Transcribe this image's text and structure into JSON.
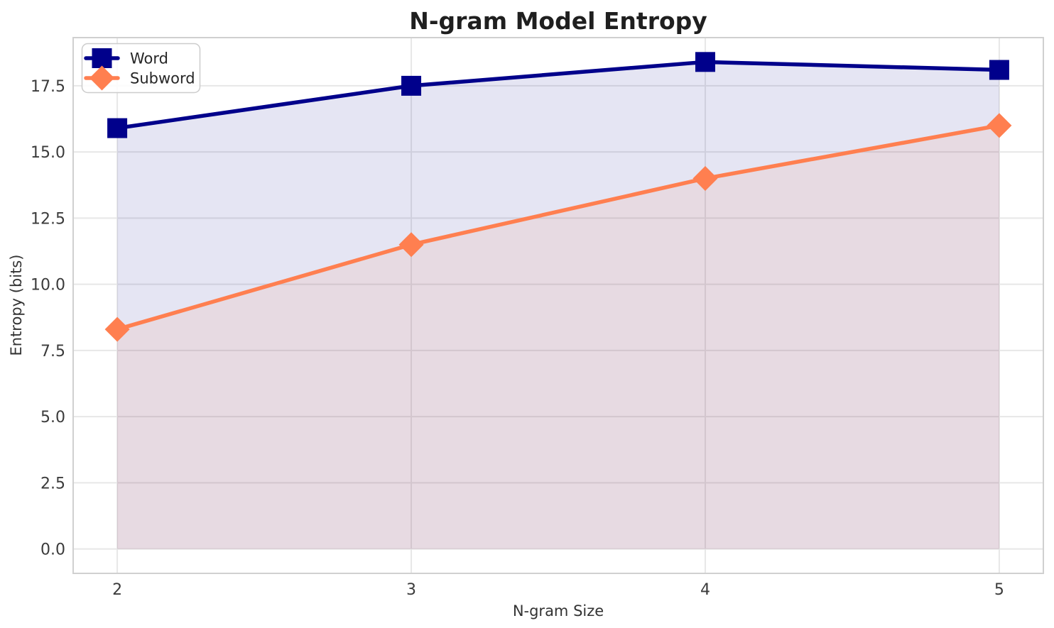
{
  "page": {
    "background": "#FFFFFF"
  },
  "chart_data": {
    "type": "line",
    "title": "N-gram Model Entropy",
    "xlabel": "N-gram Size",
    "ylabel": "Entropy (bits)",
    "x": [
      2,
      3,
      4,
      5
    ],
    "series": [
      {
        "name": "Word",
        "values": [
          15.9,
          17.5,
          18.4,
          18.1
        ],
        "color": "#00008B",
        "marker": "square"
      },
      {
        "name": "Subword",
        "values": [
          8.3,
          11.5,
          14.0,
          16.0
        ],
        "color": "#FF7F50",
        "marker": "diamond"
      }
    ],
    "fill_to_zero": true,
    "fill_alpha": 0.1,
    "line_width": 5.5,
    "xlim": [
      1.85,
      5.15
    ],
    "ylim": [
      -0.92,
      19.32
    ],
    "xticks": [
      2,
      3,
      4,
      5
    ],
    "xtick_labels": [
      "2",
      "3",
      "4",
      "5"
    ],
    "yticks": [
      0,
      2.5,
      5,
      7.5,
      10,
      12.5,
      15,
      17.5
    ],
    "ytick_labels": [
      "0.0",
      "2.5",
      "5.0",
      "7.5",
      "10.0",
      "12.5",
      "15.0",
      "17.5"
    ],
    "grid": true,
    "legend": {
      "position": "upper-left",
      "entries": [
        "Word",
        "Subword"
      ]
    },
    "colors": {
      "grid": "#E7E7E7",
      "spine": "#D0D0D0",
      "tick_text": "#3B3B3B",
      "label_text": "#333333",
      "title_text": "#1F1F1F",
      "legend_border": "#CCCCCC",
      "legend_background": "rgba(255,255,255,0.85)"
    }
  }
}
